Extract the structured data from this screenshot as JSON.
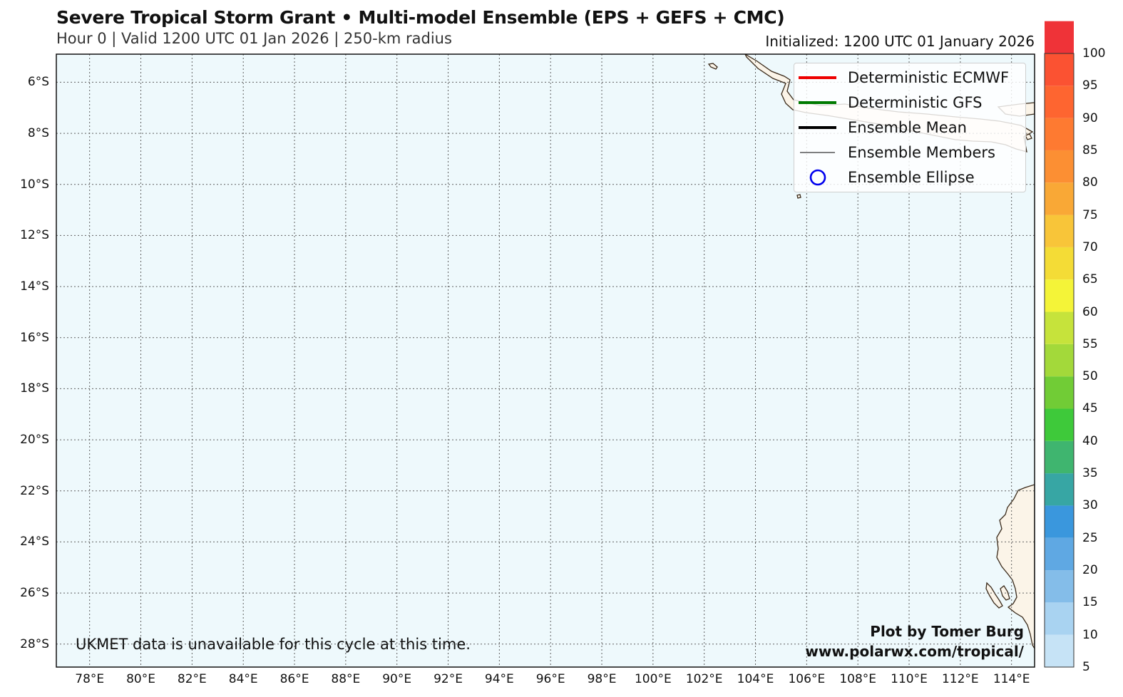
{
  "header": {
    "title": "Severe Tropical Storm Grant • Multi-model Ensemble (EPS + GEFS + CMC)",
    "subtitle": "Hour 0 | Valid 1200 UTC 01 Jan 2026 | 250-km radius",
    "initialized": "Initialized: 1200 UTC 01 January 2026"
  },
  "map": {
    "lon_range": [
      76.7,
      114.9
    ],
    "lat_range": [
      -28.9,
      -4.9
    ],
    "ocean_color": "#eef9fc",
    "land_color": "#fbf4e8",
    "coast_color": "#3a2a1a",
    "grid_color": "#606060",
    "lat_labels": [
      {
        "lat": -6,
        "label": "6°S"
      },
      {
        "lat": -8,
        "label": "8°S"
      },
      {
        "lat": -10,
        "label": "10°S"
      },
      {
        "lat": -12,
        "label": "12°S"
      },
      {
        "lat": -14,
        "label": "14°S"
      },
      {
        "lat": -16,
        "label": "16°S"
      },
      {
        "lat": -18,
        "label": "18°S"
      },
      {
        "lat": -20,
        "label": "20°S"
      },
      {
        "lat": -22,
        "label": "22°S"
      },
      {
        "lat": -24,
        "label": "24°S"
      },
      {
        "lat": -26,
        "label": "26°S"
      },
      {
        "lat": -28,
        "label": "28°S"
      }
    ],
    "lon_labels": [
      {
        "lon": 78,
        "label": "78°E"
      },
      {
        "lon": 80,
        "label": "80°E"
      },
      {
        "lon": 82,
        "label": "82°E"
      },
      {
        "lon": 84,
        "label": "84°E"
      },
      {
        "lon": 86,
        "label": "86°E"
      },
      {
        "lon": 88,
        "label": "88°E"
      },
      {
        "lon": 90,
        "label": "90°E"
      },
      {
        "lon": 92,
        "label": "92°E"
      },
      {
        "lon": 94,
        "label": "94°E"
      },
      {
        "lon": 96,
        "label": "96°E"
      },
      {
        "lon": 98,
        "label": "98°E"
      },
      {
        "lon": 100,
        "label": "100°E"
      },
      {
        "lon": 102,
        "label": "102°E"
      },
      {
        "lon": 104,
        "label": "104°E"
      },
      {
        "lon": 106,
        "label": "106°E"
      },
      {
        "lon": 108,
        "label": "108°E"
      },
      {
        "lon": 110,
        "label": "110°E"
      },
      {
        "lon": 112,
        "label": "112°E"
      },
      {
        "lon": 114,
        "label": "114°E"
      }
    ]
  },
  "legend": {
    "items": [
      {
        "label": "Deterministic ECMWF",
        "color": "#ee0000",
        "style": "thick-line"
      },
      {
        "label": "Deterministic GFS",
        "color": "#007a00",
        "style": "thick-line"
      },
      {
        "label": "Ensemble Mean",
        "color": "#000000",
        "style": "thick-line"
      },
      {
        "label": "Ensemble Members",
        "color": "#000000",
        "style": "thin-line"
      },
      {
        "label": "Ensemble Ellipse",
        "color": "#0000ee",
        "style": "circle"
      }
    ]
  },
  "notes": {
    "ukmet": "UKMET data is unavailable for this cycle at this time.",
    "credit": "Plot by Tomer Burg",
    "website": "www.polarwx.com/tropical/"
  },
  "colorbar": {
    "min": 5,
    "max": 100,
    "labels": [
      "100",
      "95",
      "90",
      "85",
      "80",
      "75",
      "70",
      "65",
      "60",
      "55",
      "50",
      "45",
      "40",
      "35",
      "30",
      "25",
      "20",
      "15",
      "10",
      "5"
    ],
    "colors": [
      "#c6e3f6",
      "#a9d3f1",
      "#84bde9",
      "#5fa8e3",
      "#3a97dd",
      "#37a6a4",
      "#3fb56f",
      "#3ec93a",
      "#71cc36",
      "#a3d93a",
      "#c6e33b",
      "#f4f438",
      "#f4dc36",
      "#f8c539",
      "#f9a836",
      "#fc8f33",
      "#fe7a31",
      "#fe6530",
      "#fb5232",
      "#ef3338"
    ]
  }
}
